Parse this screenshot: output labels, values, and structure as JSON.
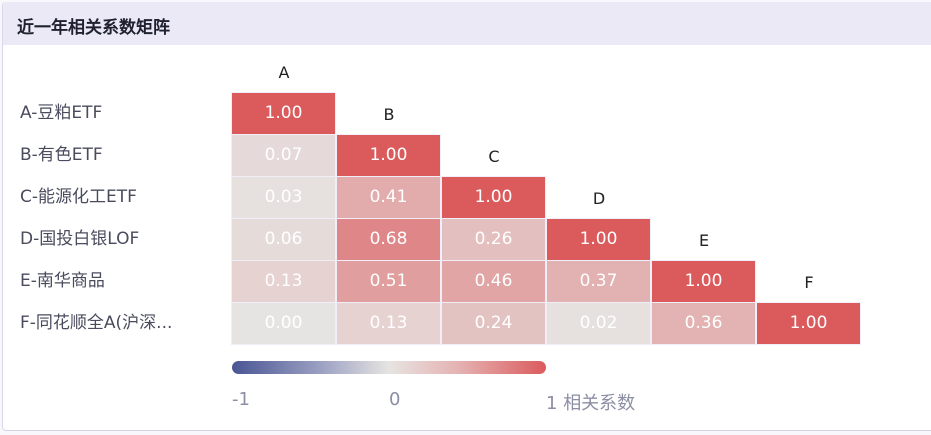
{
  "panel": {
    "title": "近一年相关系数矩阵"
  },
  "colors": {
    "negative": "#4a5594",
    "neutral": "#e6e4e2",
    "positive": "#db5b5d",
    "header_bg": "#eae9f5"
  },
  "rows": [
    "A-豆粕ETF",
    "B-有色ETF",
    "C-能源化工ETF",
    "D-国投白银LOF",
    "E-南华商品",
    "F-同花顺全A(沪深..."
  ],
  "columns": [
    "A",
    "B",
    "C",
    "D",
    "E",
    "F"
  ],
  "colorbar": {
    "min_label": "-1",
    "mid_label": "0",
    "max_label": "1",
    "title": "相关系数"
  },
  "cells": {
    "r0": [
      "1.00"
    ],
    "r1": [
      "0.07",
      "1.00"
    ],
    "r2": [
      "0.03",
      "0.41",
      "1.00"
    ],
    "r3": [
      "0.06",
      "0.68",
      "0.26",
      "1.00"
    ],
    "r4": [
      "0.13",
      "0.51",
      "0.46",
      "0.37",
      "1.00"
    ],
    "r5": [
      "0.00",
      "0.13",
      "0.24",
      "0.02",
      "0.36",
      "1.00"
    ]
  },
  "chart_data": {
    "type": "heatmap",
    "title": "近一年相关系数矩阵",
    "x": [
      "A",
      "B",
      "C",
      "D",
      "E",
      "F"
    ],
    "y": [
      "A-豆粕ETF",
      "B-有色ETF",
      "C-能源化工ETF",
      "D-国投白银LOF",
      "E-南华商品",
      "F-同花顺全A(沪深..."
    ],
    "values": [
      [
        1.0
      ],
      [
        0.07,
        1.0
      ],
      [
        0.03,
        0.41,
        1.0
      ],
      [
        0.06,
        0.68,
        0.26,
        1.0
      ],
      [
        0.13,
        0.51,
        0.46,
        0.37,
        1.0
      ],
      [
        0.0,
        0.13,
        0.24,
        0.02,
        0.36,
        1.0
      ]
    ],
    "layout": "lower-triangular",
    "colorscale": {
      "range": [
        -1,
        1
      ],
      "colors": [
        "#4a5594",
        "#e6e4e2",
        "#db5b5d"
      ],
      "label": "相关系数"
    },
    "legend_position": "bottom"
  }
}
